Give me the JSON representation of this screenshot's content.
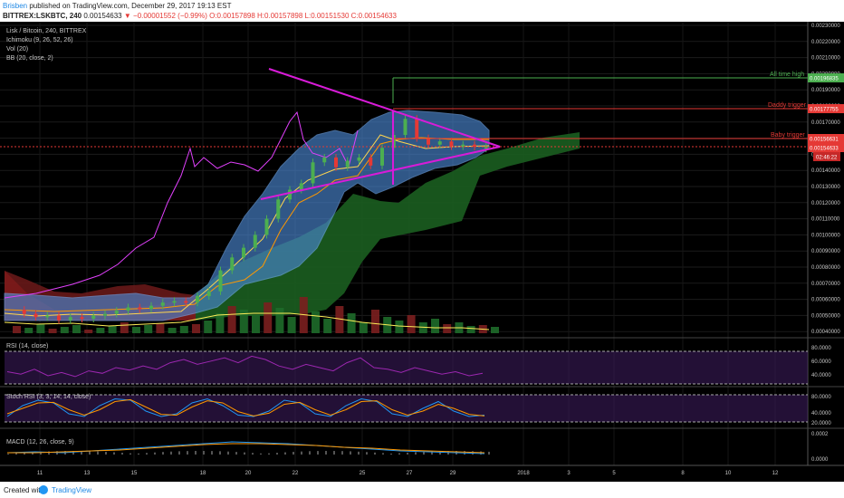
{
  "header": {
    "author": "Brisben",
    "published": " published on TradingView.com, December 29, 2017 19:13 EST",
    "symbol": "BITTREX:LSKBTC, 240",
    "last": "0.00154633",
    "change": "−0.00001552 (−0.99%)",
    "ohlc": "O:0.00157898 H:0.00157898 L:0.00151530 C:0.00154633"
  },
  "footer": {
    "created_with": "Created with",
    "brand": "TradingView"
  },
  "legend": {
    "title": "Lisk / Bitcoin, 240, BITTREX",
    "ichimoku": "Ichimoku (9, 26, 52, 26)",
    "vol": "Vol (20)",
    "bb": "BB (20, close, 2)",
    "rsi": "RSI (14, close)",
    "stoch": "Stoch RSI (3, 3, 14, 14, close)",
    "macd": "MACD (12, 26, close, 9)"
  },
  "annotations": {
    "ath": "All time high",
    "ath_value": "0.00196835",
    "daddy": "Daddy trigger",
    "daddy_value": "0.00177755",
    "baby": "Baby trigger",
    "baby_value": "0.00156631",
    "last_price": "0.00154633",
    "countdown": "02:46:22"
  },
  "colors": {
    "background": "#000000",
    "ath": "#4caf50",
    "daddy": "#e53935",
    "baby": "#e53935",
    "triangle": "#d81bd8",
    "bb_fill": "#5a9be6",
    "cloud": "#1b5e20",
    "rsi": "#9c27b0",
    "macd": "#2196f3",
    "signal": "#ff9800",
    "tenkan": "#ffd54f",
    "kijun": "#ff9800"
  },
  "chart_data": {
    "type": "line",
    "title": "Lisk / Bitcoin, 240, BITTREX",
    "x_labels": [
      "11",
      "13",
      "15",
      "18",
      "20",
      "22",
      "25",
      "27",
      "29",
      "2018",
      "3",
      "5",
      "8",
      "10",
      "12"
    ],
    "y_ticks": [
      "0.00230000",
      "0.00220000",
      "0.00210000",
      "0.00200000",
      "0.00190000",
      "0.00180000",
      "0.00170000",
      "0.00160000",
      "0.00150000",
      "0.00140000",
      "0.00130000",
      "0.00120000",
      "0.00110000",
      "0.00100000",
      "0.00090000",
      "0.00080000",
      "0.00070000",
      "0.00060000",
      "0.00050000",
      "0.00040000"
    ],
    "ylim": [
      0.0004,
      0.0023
    ],
    "series": [
      {
        "name": "Lisk / Bitcoin",
        "x": [
          9.5,
          10,
          10.5,
          11,
          11.5,
          12,
          12.5,
          13,
          13.5,
          14,
          14.5,
          15,
          15.5,
          16,
          16.5,
          17,
          17.5,
          18,
          18.5,
          19,
          19.5,
          20,
          20.5,
          21,
          21.5,
          22,
          22.5,
          23,
          23.5,
          24,
          24.5,
          25,
          25.5,
          26,
          26.5,
          27,
          27.5,
          28,
          28.5,
          29,
          29.5,
          30
        ],
        "values": [
          0.000535,
          0.00051,
          0.00049,
          0.0005,
          0.00047,
          0.00049,
          0.00048,
          0.0005,
          0.00051,
          0.00053,
          0.00055,
          0.00054,
          0.00056,
          0.00058,
          0.00059,
          0.00058,
          0.00062,
          0.00065,
          0.00078,
          0.00086,
          0.00092,
          0.001,
          0.0011,
          0.00122,
          0.00128,
          0.00132,
          0.00145,
          0.00148,
          0.00142,
          0.00146,
          0.00148,
          0.00143,
          0.00154,
          0.00162,
          0.00172,
          0.0016,
          0.00156,
          0.00158,
          0.00155,
          0.00156,
          0.00154633,
          0.00154633
        ]
      }
    ],
    "levels": [
      {
        "label": "All time high",
        "value": 0.00196835
      },
      {
        "label": "Daddy trigger",
        "value": 0.00177755
      },
      {
        "label": "Baby trigger",
        "value": 0.00156631
      }
    ],
    "pattern": "symmetrical triangle",
    "triangle": {
      "upper": [
        [
          20.5,
          0.00205
        ],
        [
          30.5,
          0.00157
        ]
      ],
      "lower": [
        [
          20.0,
          0.0013
        ],
        [
          30.5,
          0.00152
        ]
      ]
    },
    "rsi": {
      "ticks": [
        "80.0000",
        "60.0000",
        "40.0000"
      ],
      "bands": [
        70,
        30
      ]
    },
    "stoch_rsi": {
      "ticks": [
        "80.0000",
        "40.0000",
        "20.0000"
      ]
    },
    "macd": {
      "ticks": [
        "0.0002",
        "0.0000"
      ]
    }
  }
}
